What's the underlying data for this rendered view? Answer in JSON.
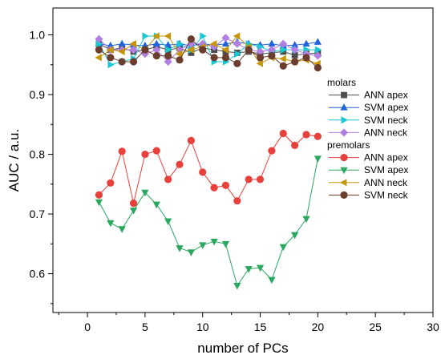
{
  "chart_data": {
    "type": "line",
    "xlabel": "number of PCs",
    "ylabel": "AUC / a.u.",
    "xlim": [
      -3,
      30
    ],
    "ylim": [
      0.535,
      1.045
    ],
    "xticks": [
      "0",
      "5",
      "10",
      "15",
      "20",
      "25",
      "30"
    ],
    "yticks": [
      "0.6",
      "0.7",
      "0.8",
      "0.9",
      "1.0"
    ],
    "grid": false,
    "legend_position": "right",
    "x": [
      1,
      2,
      3,
      4,
      5,
      6,
      7,
      8,
      9,
      10,
      11,
      12,
      13,
      14,
      15,
      16,
      17,
      18,
      19,
      20
    ],
    "groups": [
      {
        "name": "molars",
        "series": [
          {
            "name": "ANN apex",
            "color": "#4d4d4d",
            "marker": "square",
            "values": [
              0.985,
              0.975,
              0.978,
              0.972,
              0.975,
              0.98,
              0.975,
              0.978,
              0.97,
              0.978,
              0.975,
              0.972,
              0.97,
              0.972,
              0.968,
              0.97,
              0.972,
              0.966,
              0.968,
              0.97
            ]
          },
          {
            "name": "SVM apex",
            "color": "#1f64d8",
            "marker": "triangle-up",
            "values": [
              0.985,
              0.982,
              0.985,
              0.983,
              0.982,
              0.985,
              0.983,
              0.985,
              0.982,
              0.985,
              0.983,
              0.985,
              0.988,
              0.985,
              0.983,
              0.985,
              0.982,
              0.983,
              0.985,
              0.988
            ]
          },
          {
            "name": "SVM neck",
            "color": "#19c8d2",
            "marker": "triangle-right",
            "values": [
              0.985,
              0.95,
              0.955,
              0.96,
              0.998,
              0.998,
              0.975,
              0.985,
              0.975,
              0.998,
              0.955,
              0.955,
              0.968,
              0.985,
              0.98,
              0.972,
              0.975,
              0.975,
              0.975,
              0.975
            ]
          },
          {
            "name": "ANN neck",
            "color": "#b07fe0",
            "marker": "diamond",
            "values": [
              0.993,
              0.975,
              0.975,
              0.975,
              0.968,
              0.975,
              0.955,
              0.975,
              0.985,
              0.985,
              0.98,
              0.995,
              0.985,
              0.975,
              0.972,
              0.975,
              0.985,
              0.975,
              0.968,
              0.965
            ]
          }
        ]
      },
      {
        "name": "premolars",
        "series": [
          {
            "name": "ANN apex",
            "color": "#e8403a",
            "marker": "circle",
            "values": [
              0.732,
              0.752,
              0.805,
              0.718,
              0.8,
              0.806,
              0.758,
              0.783,
              0.823,
              0.77,
              0.744,
              0.748,
              0.722,
              0.758,
              0.758,
              0.806,
              0.835,
              0.815,
              0.833,
              0.83
            ]
          },
          {
            "name": "SVM apex",
            "color": "#2aa860",
            "marker": "triangle-down",
            "values": [
              0.72,
              0.685,
              0.675,
              0.706,
              0.736,
              0.716,
              0.688,
              0.643,
              0.636,
              0.648,
              0.654,
              0.65,
              0.58,
              0.608,
              0.61,
              0.59,
              0.645,
              0.665,
              0.692,
              0.793
            ]
          },
          {
            "name": "ANN neck",
            "color": "#c8960a",
            "marker": "triangle-left",
            "values": [
              0.962,
              0.975,
              0.972,
              0.985,
              0.975,
              0.998,
              0.998,
              0.968,
              0.975,
              0.98,
              0.985,
              0.975,
              0.998,
              0.98,
              0.952,
              0.962,
              0.96,
              0.955,
              0.958,
              0.952
            ]
          },
          {
            "name": "SVM neck",
            "color": "#6b3d2e",
            "marker": "circle",
            "values": [
              0.975,
              0.962,
              0.955,
              0.955,
              0.975,
              0.965,
              0.965,
              0.958,
              0.993,
              0.975,
              0.962,
              0.962,
              0.952,
              0.975,
              0.962,
              0.965,
              0.948,
              0.955,
              0.962,
              0.945
            ]
          }
        ]
      }
    ]
  }
}
